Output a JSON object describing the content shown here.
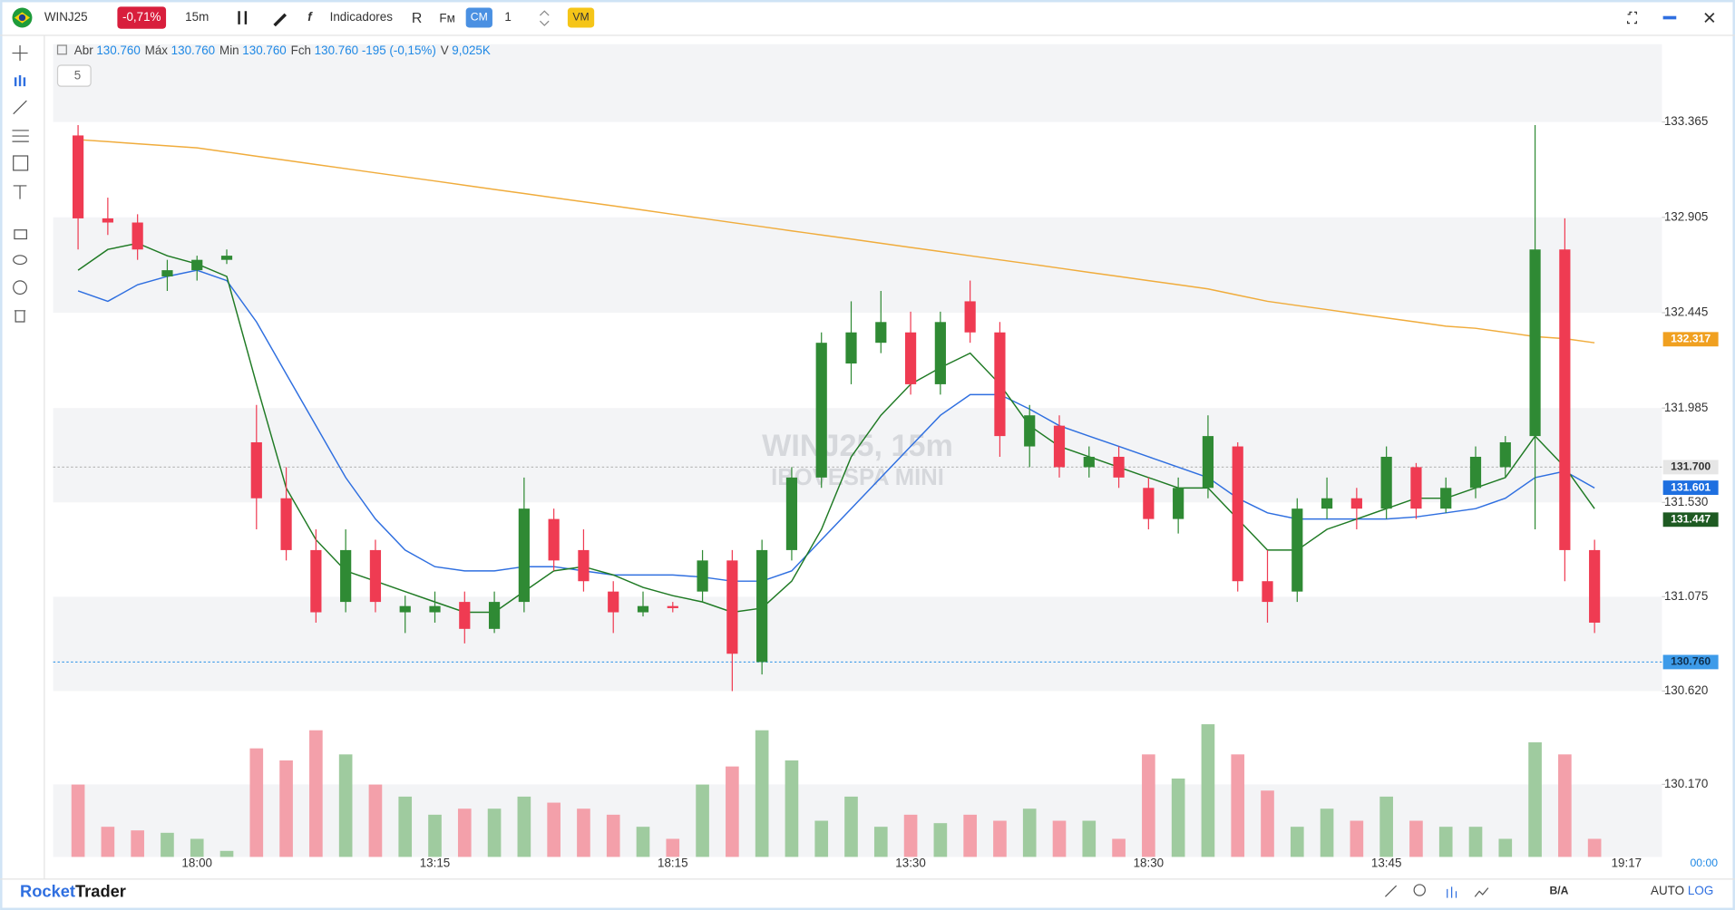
{
  "toolbar": {
    "symbol": "WINJ25",
    "change": "-0,71%",
    "interval": "15m",
    "indicators": "Indicadores",
    "fm": "Fм",
    "cm": "CM",
    "count": "1",
    "vm": "VM"
  },
  "ohlc_header": [
    {
      "label": "Abr",
      "value": "130.760"
    },
    {
      "label": "Máx",
      "value": "130.760"
    },
    {
      "label": "Min",
      "value": "130.760"
    },
    {
      "label": "Fch",
      "value": "130.760 -195 (-0,15%)"
    },
    {
      "label": "V",
      "value": "9,025K"
    }
  ],
  "collapse": "5",
  "watermark": {
    "line1": "WINJ25, 15m",
    "line2": "IBOVESPA MINI"
  },
  "footer": {
    "brand_a": "Rocket",
    "brand_b": "Trader",
    "ba": "B/A",
    "auto": "AUTO",
    "log": "LOG"
  },
  "chart_data": {
    "type": "candlestick",
    "categories": [
      null,
      null,
      null,
      null,
      "18:00",
      null,
      null,
      null,
      null,
      null,
      null,
      null,
      "13:15",
      null,
      null,
      null,
      null,
      null,
      null,
      null,
      "18:15",
      null,
      null,
      null,
      null,
      null,
      null,
      null,
      "13:30",
      null,
      null,
      null,
      null,
      null,
      null,
      null,
      "18:30",
      null,
      null,
      null,
      null,
      null,
      null,
      null,
      "13:45",
      null,
      null,
      null,
      null,
      null,
      null,
      null
    ],
    "current_time": "19:17",
    "countdown": "00:00",
    "open": [
      133.3,
      132.9,
      132.88,
      132.62,
      132.65,
      132.7,
      131.82,
      131.55,
      131.3,
      131.05,
      131.3,
      131.0,
      131.0,
      131.05,
      130.92,
      131.05,
      131.45,
      131.3,
      131.1,
      131.0,
      131.03,
      131.1,
      131.25,
      130.76,
      131.3,
      131.65,
      132.2,
      132.3,
      132.35,
      132.1,
      132.5,
      132.35,
      131.8,
      131.9,
      131.7,
      131.75,
      131.6,
      131.45,
      131.6,
      131.8,
      131.15,
      131.1,
      131.5,
      131.55,
      131.5,
      131.7,
      131.5,
      131.6,
      131.7,
      131.85,
      132.75,
      131.3
    ],
    "high": [
      133.35,
      133.0,
      132.92,
      132.7,
      132.72,
      132.75,
      132.0,
      131.7,
      131.4,
      131.4,
      131.35,
      131.08,
      131.1,
      131.1,
      131.1,
      131.65,
      131.5,
      131.4,
      131.15,
      131.1,
      131.05,
      131.3,
      131.3,
      131.35,
      131.7,
      132.35,
      132.5,
      132.55,
      132.45,
      132.45,
      132.6,
      132.4,
      132.0,
      131.95,
      131.8,
      131.8,
      131.65,
      131.65,
      131.95,
      131.82,
      131.3,
      131.55,
      131.65,
      131.6,
      131.8,
      131.72,
      131.65,
      131.8,
      131.85,
      133.35,
      132.9,
      131.35
    ],
    "low": [
      132.75,
      132.82,
      132.7,
      132.55,
      132.6,
      132.68,
      131.4,
      131.25,
      130.95,
      131.0,
      131.0,
      130.9,
      130.95,
      130.85,
      130.9,
      131.0,
      131.2,
      131.1,
      130.9,
      130.98,
      131.0,
      131.05,
      130.62,
      130.7,
      131.25,
      131.6,
      132.1,
      132.25,
      132.05,
      132.05,
      132.3,
      131.75,
      131.7,
      131.65,
      131.65,
      131.6,
      131.4,
      131.38,
      131.55,
      131.1,
      130.95,
      131.05,
      131.45,
      131.4,
      131.45,
      131.45,
      131.48,
      131.55,
      131.65,
      131.4,
      131.15,
      130.9
    ],
    "close": [
      132.9,
      132.88,
      132.75,
      132.65,
      132.7,
      132.72,
      131.55,
      131.3,
      131.0,
      131.3,
      131.05,
      131.03,
      131.03,
      130.92,
      131.05,
      131.5,
      131.25,
      131.15,
      131.0,
      131.03,
      131.02,
      131.25,
      130.8,
      131.3,
      131.65,
      132.3,
      132.35,
      132.4,
      132.1,
      132.4,
      132.35,
      131.85,
      131.95,
      131.7,
      131.75,
      131.65,
      131.45,
      131.6,
      131.85,
      131.15,
      131.05,
      131.5,
      131.55,
      131.5,
      131.75,
      131.5,
      131.6,
      131.75,
      131.82,
      132.75,
      131.3,
      130.95
    ],
    "volume": [
      60,
      25,
      22,
      20,
      15,
      5,
      90,
      80,
      105,
      85,
      60,
      50,
      35,
      40,
      40,
      50,
      45,
      40,
      35,
      25,
      15,
      60,
      75,
      105,
      80,
      30,
      50,
      25,
      35,
      28,
      35,
      30,
      40,
      30,
      30,
      15,
      85,
      65,
      110,
      85,
      55,
      25,
      40,
      30,
      50,
      30,
      25,
      25,
      15,
      95,
      85,
      15
    ],
    "up_color": "#2f8a34",
    "down_color": "#ef3b52",
    "volume_up_color": "#9fcb9f",
    "volume_down_color": "#f3a0aa",
    "ma_series": [
      {
        "color": "#f0ac3c",
        "values": [
          133.28,
          133.27,
          133.26,
          133.25,
          133.24,
          133.22,
          133.2,
          133.18,
          133.16,
          133.14,
          133.12,
          133.1,
          133.08,
          133.06,
          133.04,
          133.02,
          133.0,
          132.98,
          132.96,
          132.94,
          132.92,
          132.9,
          132.88,
          132.86,
          132.84,
          132.82,
          132.8,
          132.78,
          132.76,
          132.74,
          132.72,
          132.7,
          132.68,
          132.66,
          132.64,
          132.62,
          132.6,
          132.58,
          132.56,
          132.53,
          132.5,
          132.48,
          132.46,
          132.44,
          132.42,
          132.4,
          132.38,
          132.37,
          132.35,
          132.33,
          132.32,
          132.3
        ]
      },
      {
        "color": "#2f6fe0",
        "values": [
          132.55,
          132.5,
          132.58,
          132.62,
          132.65,
          132.6,
          132.4,
          132.15,
          131.9,
          131.65,
          131.45,
          131.3,
          131.22,
          131.2,
          131.2,
          131.22,
          131.22,
          131.2,
          131.18,
          131.18,
          131.18,
          131.17,
          131.15,
          131.15,
          131.2,
          131.35,
          131.5,
          131.65,
          131.8,
          131.95,
          132.05,
          132.05,
          131.98,
          131.9,
          131.85,
          131.8,
          131.75,
          131.7,
          131.65,
          131.55,
          131.48,
          131.45,
          131.45,
          131.45,
          131.45,
          131.46,
          131.48,
          131.5,
          131.55,
          131.65,
          131.68,
          131.6
        ]
      },
      {
        "color": "#1f7a24",
        "values": [
          132.65,
          132.75,
          132.78,
          132.72,
          132.68,
          132.62,
          132.1,
          131.6,
          131.35,
          131.2,
          131.15,
          131.1,
          131.05,
          131.0,
          131.0,
          131.1,
          131.2,
          131.22,
          131.18,
          131.12,
          131.08,
          131.05,
          131.0,
          131.02,
          131.15,
          131.4,
          131.75,
          131.95,
          132.1,
          132.18,
          132.25,
          132.1,
          131.9,
          131.8,
          131.75,
          131.7,
          131.65,
          131.6,
          131.6,
          131.45,
          131.3,
          131.3,
          131.4,
          131.45,
          131.5,
          131.55,
          131.55,
          131.6,
          131.65,
          131.85,
          131.7,
          131.5
        ]
      }
    ],
    "ylim": [
      129.82,
      133.74
    ],
    "yticks": [
      133.365,
      132.905,
      132.445,
      131.985,
      {
        "value": 131.53,
        "label": "131.530"
      },
      131.075,
      {
        "value": 130.62,
        "label": "130.620"
      },
      {
        "value": 130.17,
        "label": "130.170"
      }
    ],
    "price_tags": [
      {
        "value": 132.317,
        "label": "132.317",
        "color": "#f0a020",
        "text_color": "#ffffff",
        "dotted": false
      },
      {
        "value": 131.7,
        "label": "131.700",
        "color": "#e6e6e6",
        "text_color": "#333333",
        "dotted": true
      },
      {
        "value": 131.601,
        "label": "131.601",
        "color": "#1e6fe0",
        "text_color": "#ffffff",
        "dotted": false
      },
      {
        "value": 131.447,
        "label": "131.447",
        "color": "#1e5a22",
        "text_color": "#ffffff",
        "dotted": false
      },
      {
        "value": 130.76,
        "label": "130.760",
        "color": "#3d9be9",
        "text_color": "#10304f",
        "dotted": true
      }
    ]
  }
}
